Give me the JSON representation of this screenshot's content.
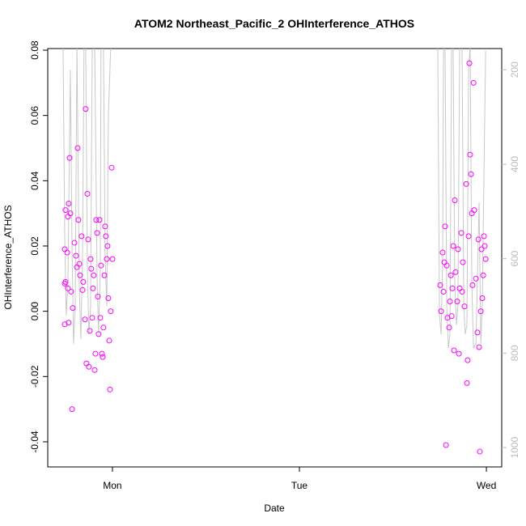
{
  "chart_data": {
    "type": "scatter",
    "title": "ATOM2 Northeast_Pacific_2 OHInterference_ATHOS",
    "xlabel": "Date",
    "ylabel": "OHInterference_ATHOS",
    "xlim": [
      -0.346,
      2.082
    ],
    "xticks": [
      {
        "value": 0,
        "label": "Mon"
      },
      {
        "value": 1,
        "label": "Tue"
      },
      {
        "value": 2,
        "label": "Wed"
      }
    ],
    "ylim": [
      -0.0477,
      0.0805
    ],
    "yticks": [
      {
        "value": -0.04,
        "label": "-0.04"
      },
      -0.02,
      {
        "value": 0,
        "label": "0.00"
      },
      0.02,
      0.04,
      0.06,
      0.08
    ],
    "y2lim": [
      1041,
      155
    ],
    "y2ticks": [
      200,
      400,
      600,
      800,
      1000
    ],
    "series": [
      {
        "type": "line",
        "axis": "y2",
        "color": "#c8c8c8",
        "x": [
          -0.264,
          -0.255,
          -0.247,
          -0.238,
          -0.225,
          -0.216,
          -0.208,
          -0.199,
          -0.19,
          -0.177,
          -0.169,
          -0.16,
          -0.152,
          -0.143,
          -0.134,
          -0.126,
          -0.117,
          -0.108,
          -0.095,
          -0.082,
          -0.074,
          -0.065,
          -0.061,
          -0.048,
          -0.039,
          -0.03,
          -0.022,
          -0.009,
          null,
          1.74,
          1.749,
          1.758,
          1.766,
          1.771,
          1.779,
          1.788,
          1.797,
          1.805,
          1.814,
          1.822,
          1.831,
          1.84,
          1.848,
          1.857,
          1.87,
          1.879,
          1.887,
          1.896,
          1.905,
          1.913,
          1.922,
          1.931,
          1.944,
          1.952,
          1.961,
          1.97,
          1.978,
          1.991,
          1.996
        ],
        "values": [
          150,
          560,
          720,
          650,
          200,
          580,
          780,
          700,
          150,
          660,
          770,
          600,
          150,
          150,
          620,
          760,
          700,
          150,
          150,
          640,
          760,
          620,
          150,
          150,
          600,
          700,
          300,
          150,
          null,
          150,
          720,
          760,
          600,
          150,
          150,
          700,
          790,
          760,
          150,
          150,
          650,
          740,
          700,
          150,
          150,
          700,
          760,
          740,
          200,
          150,
          650,
          790,
          780,
          640,
          480,
          780,
          700,
          300,
          160
        ]
      },
      {
        "type": "scatter",
        "color": "#ff00ff",
        "x": [
          -0.255,
          -0.251,
          -0.242,
          -0.238,
          -0.234,
          -0.229,
          -0.225,
          -0.234,
          -0.255,
          -0.251,
          -0.255,
          -0.238,
          -0.221,
          -0.216,
          -0.212,
          -0.203,
          -0.195,
          -0.186,
          -0.182,
          -0.173,
          -0.165,
          -0.156,
          -0.147,
          -0.143,
          -0.139,
          -0.134,
          -0.13,
          -0.126,
          -0.121,
          -0.113,
          -0.104,
          -0.095,
          -0.091,
          -0.087,
          -0.082,
          -0.078,
          -0.069,
          -0.065,
          -0.061,
          -0.056,
          -0.052,
          -0.048,
          -0.043,
          -0.039,
          -0.035,
          -0.03,
          -0.026,
          -0.022,
          -0.017,
          -0.013,
          -0.009,
          -0.004,
          0,
          -0.16,
          -0.117,
          -0.108,
          -0.1,
          -0.074,
          -0.177,
          -0.19,
          1.753,
          1.758,
          1.766,
          1.775,
          1.779,
          1.784,
          1.788,
          1.792,
          1.801,
          1.805,
          1.81,
          1.818,
          1.823,
          1.827,
          1.831,
          1.835,
          1.844,
          1.848,
          1.853,
          1.857,
          1.866,
          1.874,
          1.883,
          1.892,
          1.896,
          1.9,
          1.905,
          1.909,
          1.913,
          1.918,
          1.926,
          1.931,
          1.935,
          1.944,
          1.952,
          1.957,
          1.961,
          1.965,
          1.97,
          1.974,
          1.978,
          1.983,
          1.987,
          1.991,
          1.996,
          1.771,
          1.814,
          1.87,
          1.922
        ],
        "values": [
          0.019,
          0.031,
          0.018,
          0.029,
          0.033,
          0.047,
          0.03,
          -0.0035,
          -0.004,
          0.009,
          0.0085,
          0.007,
          0.006,
          -0.03,
          0.001,
          0.021,
          0.017,
          0.05,
          0.028,
          0.011,
          0.023,
          0.009,
          -0.0025,
          0.062,
          -0.016,
          0.036,
          0.022,
          -0.017,
          -0.006,
          0.013,
          0.007,
          -0.018,
          -0.013,
          0.028,
          0.024,
          0.0045,
          0.028,
          -0.002,
          0.014,
          -0.013,
          -0.014,
          -0.005,
          0.011,
          0.026,
          0.023,
          0.016,
          0.02,
          0.004,
          -0.009,
          -0.024,
          0.0,
          0.044,
          0.016,
          0.0065,
          0.016,
          -0.002,
          0.011,
          -0.007,
          0.0145,
          0.0135,
          0.008,
          0.0,
          0.018,
          0.015,
          0.026,
          -0.041,
          0.014,
          -0.002,
          -0.005,
          0.003,
          0.011,
          0.007,
          0.02,
          -0.012,
          0.034,
          0.012,
          0.003,
          0.019,
          -0.013,
          0.007,
          0.024,
          0.015,
          0.0015,
          0.039,
          -0.022,
          -0.015,
          0.023,
          0.076,
          0.048,
          0.042,
          0.008,
          0.07,
          0.031,
          0.01,
          -0.0065,
          0.022,
          -0.011,
          -0.043,
          0.0,
          0.019,
          0.004,
          0.011,
          0.023,
          0.02,
          0.016,
          0.006,
          -0.0015,
          0.006,
          0.03
        ]
      }
    ]
  }
}
